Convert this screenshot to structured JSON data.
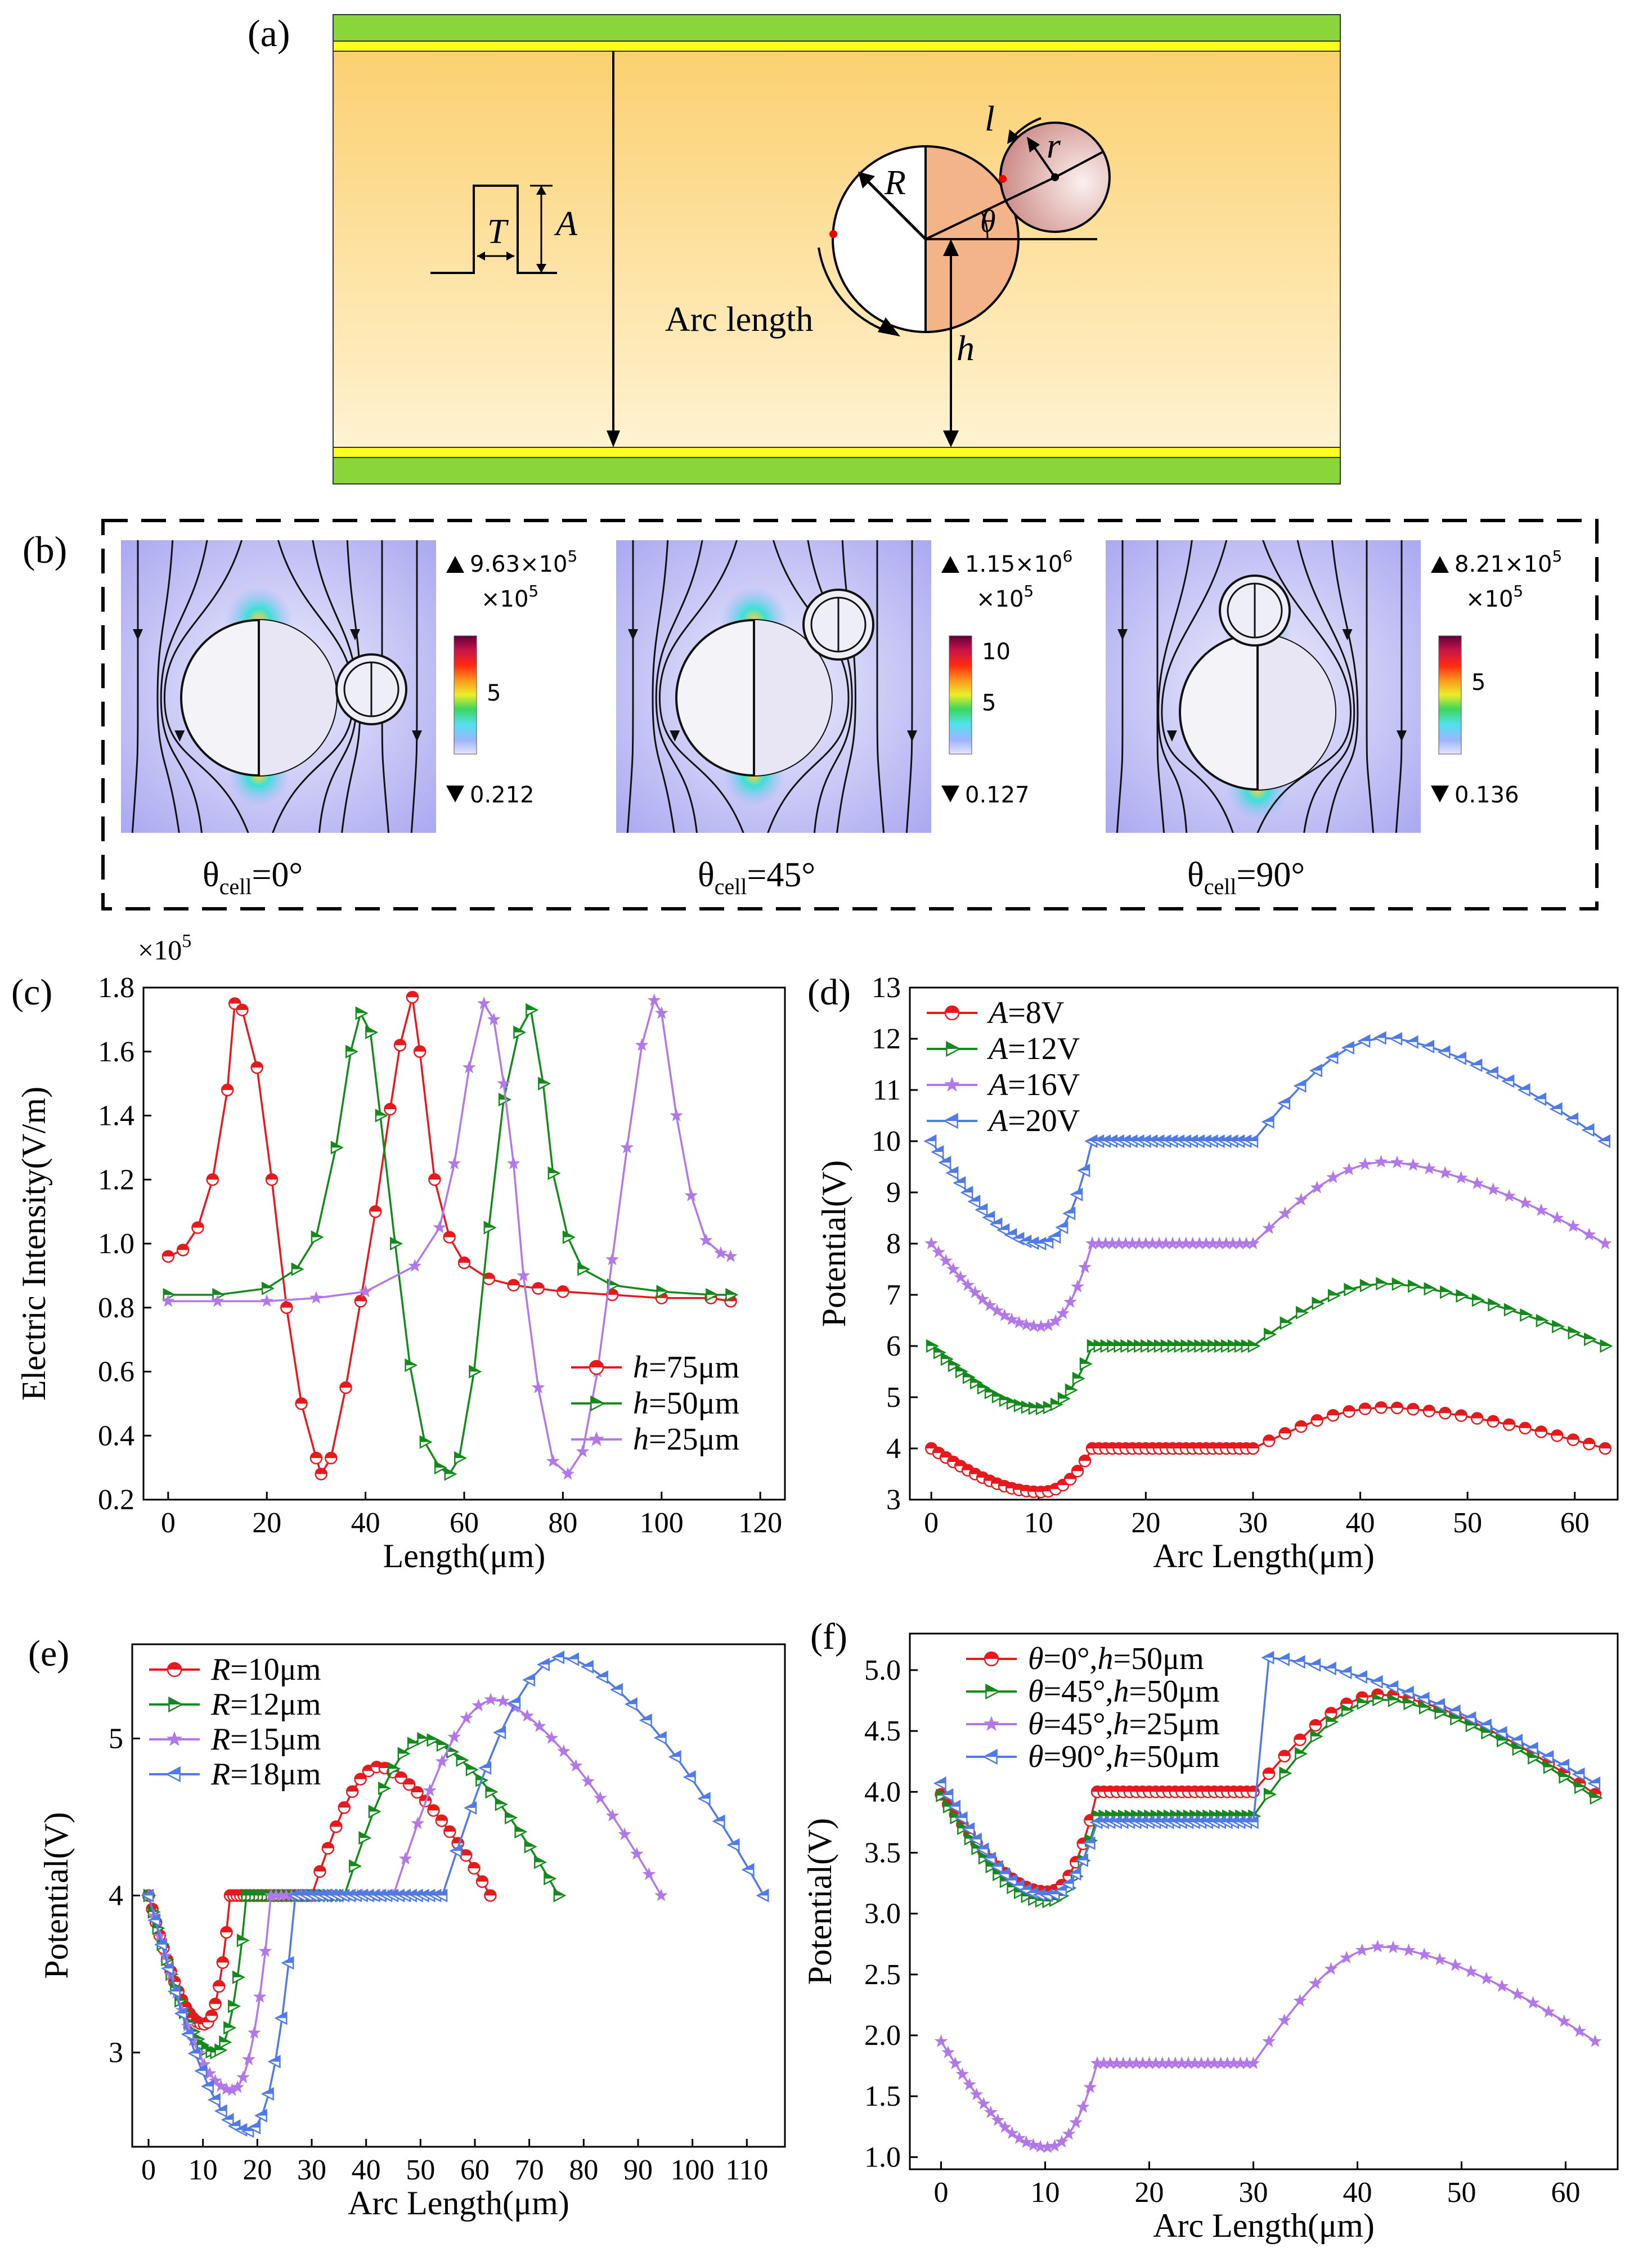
{
  "panel_a": {
    "label": "(a)",
    "symbols": {
      "T": "T",
      "A": "A",
      "R": "R",
      "r": "r",
      "l": "l",
      "theta": "θ",
      "h": "h"
    },
    "arc_length_label": "Arc length"
  },
  "panel_b": {
    "label": "(b)",
    "multiplier": "×10",
    "multiplier_exp": "5",
    "maps": [
      {
        "theta_prefix": "θ",
        "theta_sub": "cell",
        "theta_val": "=0°",
        "max_mant": "9.63×10",
        "max_exp": "5",
        "tick_label": "5",
        "min_label": "0.212"
      },
      {
        "theta_prefix": "θ",
        "theta_sub": "cell",
        "theta_val": "=45°",
        "max_mant": "1.15×10",
        "max_exp": "6",
        "tick_label_hi": "10",
        "tick_label": "5",
        "min_label": "0.127"
      },
      {
        "theta_prefix": "θ",
        "theta_sub": "cell",
        "theta_val": "=90°",
        "max_mant": "8.21×10",
        "max_exp": "5",
        "tick_label": "5",
        "min_label": "0.136"
      }
    ]
  },
  "colors": {
    "red": "#e8191c",
    "green": "#138a1b",
    "violet": "#b277e8",
    "blue": "#4f7ae8",
    "yellow": "#ffe68a",
    "electrode": "#8ad63a",
    "cell": "#f2b488"
  },
  "chart_data": [
    {
      "id": "c",
      "label": "(c)",
      "type": "line",
      "xlabel": "Length(μm)",
      "ylabel": "Electric Intensity(V/m)",
      "ymult": "×10",
      "ymult_exp": "5",
      "xlim": [
        -5,
        125
      ],
      "ylim": [
        0.2,
        1.8
      ],
      "xticks": [
        0,
        20,
        40,
        60,
        80,
        100,
        120
      ],
      "yticks": [
        0.2,
        0.4,
        0.6,
        0.8,
        1.0,
        1.2,
        1.4,
        1.6,
        1.8
      ],
      "ytick_labels": [
        "0.2",
        "0.4",
        "0.6",
        "0.8",
        "1.0",
        "1.2",
        "1.4",
        "1.6",
        "1.8"
      ],
      "legend_pos": "bottom-right",
      "series": [
        {
          "name_sym": "h",
          "name_rest": "=75μm",
          "color": "red",
          "marker": "circle",
          "x": [
            0,
            3,
            6,
            9,
            12,
            13.5,
            15,
            18,
            21,
            24,
            27,
            30,
            31,
            33,
            36,
            39,
            42,
            45,
            47,
            49.5,
            51,
            54,
            57,
            60,
            65,
            70,
            75,
            80,
            90,
            100,
            110,
            114
          ],
          "y": [
            0.96,
            0.98,
            1.05,
            1.2,
            1.48,
            1.75,
            1.73,
            1.55,
            1.2,
            0.8,
            0.5,
            0.33,
            0.28,
            0.33,
            0.55,
            0.82,
            1.1,
            1.42,
            1.62,
            1.77,
            1.6,
            1.2,
            1.02,
            0.94,
            0.89,
            0.87,
            0.86,
            0.85,
            0.84,
            0.83,
            0.83,
            0.82
          ]
        },
        {
          "name_sym": "h",
          "name_rest": "=50μm",
          "color": "green",
          "marker": "triangle",
          "x": [
            0,
            10,
            20,
            26,
            30,
            34,
            37,
            39,
            41,
            43,
            46,
            49,
            52,
            55,
            57,
            59,
            62,
            65,
            68,
            71,
            73.5,
            76,
            78,
            81,
            84,
            90,
            100,
            110,
            114
          ],
          "y": [
            0.84,
            0.84,
            0.86,
            0.92,
            1.02,
            1.3,
            1.6,
            1.72,
            1.66,
            1.4,
            1.0,
            0.62,
            0.38,
            0.3,
            0.28,
            0.33,
            0.6,
            1.05,
            1.45,
            1.66,
            1.73,
            1.5,
            1.22,
            1.02,
            0.92,
            0.87,
            0.85,
            0.84,
            0.84
          ]
        },
        {
          "name_sym": "h",
          "name_rest": "=25μm",
          "color": "violet",
          "marker": "star",
          "x": [
            0,
            10,
            20,
            30,
            40,
            50,
            55,
            58,
            61,
            64,
            66,
            68,
            70,
            72,
            75,
            78,
            81,
            84,
            87,
            90,
            93,
            96,
            98.5,
            100,
            103,
            106,
            109,
            112,
            114
          ],
          "y": [
            0.82,
            0.82,
            0.82,
            0.83,
            0.85,
            0.93,
            1.05,
            1.25,
            1.55,
            1.75,
            1.7,
            1.5,
            1.25,
            0.9,
            0.55,
            0.32,
            0.28,
            0.35,
            0.6,
            0.95,
            1.3,
            1.62,
            1.76,
            1.72,
            1.4,
            1.15,
            1.01,
            0.97,
            0.96
          ]
        }
      ]
    },
    {
      "id": "d",
      "label": "(d)",
      "type": "line",
      "xlabel": "Arc Length(μm)",
      "ylabel": "Potential(V)",
      "xlim": [
        -2,
        64
      ],
      "ylim": [
        3,
        13
      ],
      "xticks": [
        0,
        10,
        20,
        30,
        40,
        50,
        60
      ],
      "yticks": [
        3,
        4,
        5,
        6,
        7,
        8,
        9,
        10,
        11,
        12,
        13
      ],
      "ytick_labels": [
        "3",
        "4",
        "5",
        "6",
        "7",
        "8",
        "9",
        "10",
        "11",
        "12",
        "13"
      ],
      "legend_pos": "top-left",
      "series": [
        {
          "name_sym": "A",
          "name_rest": "=8V",
          "color": "red",
          "marker": "circle",
          "base": 4,
          "dip": 0.85,
          "peak": 0.8
        },
        {
          "name_sym": "A",
          "name_rest": "=12V",
          "color": "green",
          "marker": "triangle",
          "base": 6,
          "dip": 1.22,
          "peak": 1.22
        },
        {
          "name_sym": "A",
          "name_rest": "=16V",
          "color": "violet",
          "marker": "star",
          "base": 8,
          "dip": 1.62,
          "peak": 1.6
        },
        {
          "name_sym": "A",
          "name_rest": "=20V",
          "color": "blue",
          "marker": "tri-left",
          "base": 10,
          "dip": 2.0,
          "peak": 2.02
        }
      ]
    },
    {
      "id": "e",
      "label": "(e)",
      "type": "line",
      "xlabel": "Arc Length(μm)",
      "ylabel": "Potential(V)",
      "xlim": [
        -3,
        117
      ],
      "ylim": [
        2.4,
        5.6
      ],
      "xticks": [
        0,
        10,
        20,
        30,
        40,
        50,
        60,
        70,
        80,
        90,
        100,
        110
      ],
      "yticks": [
        3,
        4,
        5
      ],
      "ytick_labels": [
        "3",
        "4",
        "5"
      ],
      "legend_pos": "top-left",
      "series": [
        {
          "name_sym": "R",
          "name_rest": "=10μm",
          "color": "red",
          "marker": "circle",
          "R": 10,
          "dip": 0.82,
          "peak": 0.82
        },
        {
          "name_sym": "R",
          "name_rest": "=12μm",
          "color": "green",
          "marker": "triangle",
          "R": 12,
          "dip": 1.0,
          "peak": 1.0
        },
        {
          "name_sym": "R",
          "name_rest": "=15μm",
          "color": "violet",
          "marker": "star",
          "R": 15,
          "dip": 1.24,
          "peak": 1.25
        },
        {
          "name_sym": "R",
          "name_rest": "=18μm",
          "color": "blue",
          "marker": "tri-left",
          "R": 18,
          "dip": 1.5,
          "peak": 1.52
        }
      ]
    },
    {
      "id": "f",
      "label": "(f)",
      "type": "line",
      "xlabel": "Arc Length(μm)",
      "ylabel": "Potential(V)",
      "xlim": [
        -3,
        65
      ],
      "ylim": [
        0.9,
        5.3
      ],
      "xticks": [
        0,
        10,
        20,
        30,
        40,
        50,
        60
      ],
      "yticks": [
        1.0,
        1.5,
        2.0,
        2.5,
        3.0,
        3.5,
        4.0,
        4.5,
        5.0
      ],
      "ytick_labels": [
        "1.0",
        "1.5",
        "2.0",
        "2.5",
        "3.0",
        "3.5",
        "4.0",
        "4.5",
        "5.0"
      ],
      "legend_pos": "top",
      "series": [
        {
          "name_sym": "θ",
          "name_rest": "=0°,",
          "name_sym2": "h",
          "name_rest2": "=50μm",
          "color": "red",
          "marker": "circle",
          "start": 3.98,
          "dip": 3.18,
          "flat": 4.0,
          "peak": 4.8,
          "endv": 3.98,
          "f": 0.0
        },
        {
          "name_sym": "θ",
          "name_rest": "=45°,",
          "name_sym2": "h",
          "name_rest2": "=50μm",
          "color": "green",
          "marker": "triangle",
          "start": 3.97,
          "dip": 3.1,
          "flat": 3.8,
          "peak": 4.76,
          "endv": 3.95,
          "f": 0.0
        },
        {
          "name_sym": "θ",
          "name_rest": "=45°,",
          "name_sym2": "h",
          "name_rest2": "=25μm",
          "color": "violet",
          "marker": "star",
          "start": 1.95,
          "dip": 1.08,
          "flat": 1.77,
          "peak": 2.73,
          "endv": 1.95,
          "f": 0.0
        },
        {
          "name_sym": "θ",
          "name_rest": "=90°,",
          "name_sym2": "h",
          "name_rest2": "=50μm",
          "color": "blue",
          "marker": "tri-left",
          "start": 4.07,
          "dip": 3.15,
          "flat": 3.75,
          "peak": 5.15,
          "endv": 4.07,
          "f": 1.0
        }
      ]
    }
  ]
}
